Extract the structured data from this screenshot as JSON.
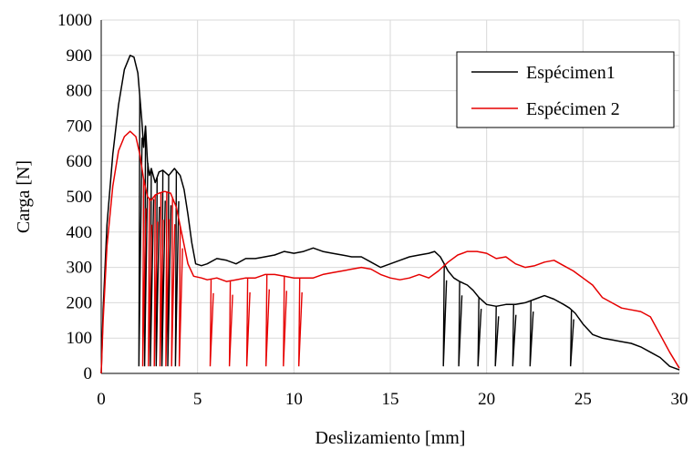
{
  "chart_data": {
    "type": "line",
    "title": "",
    "xlabel": "Deslizamiento  [mm]",
    "ylabel": "Carga [N]",
    "xlim": [
      0,
      30
    ],
    "ylim": [
      0,
      1000
    ],
    "xticks": [
      "0",
      "5",
      "10",
      "15",
      "20",
      "25",
      "30"
    ],
    "yticks": [
      "0",
      "100",
      "200",
      "300",
      "400",
      "500",
      "600",
      "700",
      "800",
      "900",
      "1000"
    ],
    "grid": true,
    "legend_position": "top-right",
    "series": [
      {
        "name": "Espécimen1",
        "color": "#000000",
        "points": [
          [
            0,
            0
          ],
          [
            0.1,
            180
          ],
          [
            0.3,
            420
          ],
          [
            0.6,
            620
          ],
          [
            0.9,
            760
          ],
          [
            1.2,
            860
          ],
          [
            1.5,
            900
          ],
          [
            1.7,
            895
          ],
          [
            1.9,
            850
          ],
          [
            2.1,
            720
          ],
          [
            2.2,
            640
          ],
          [
            2.3,
            700
          ],
          [
            2.4,
            600
          ],
          [
            2.5,
            560
          ],
          [
            2.6,
            580
          ],
          [
            2.8,
            540
          ],
          [
            3.0,
            570
          ],
          [
            3.2,
            575
          ],
          [
            3.5,
            560
          ],
          [
            3.8,
            580
          ],
          [
            4.1,
            560
          ],
          [
            4.3,
            520
          ],
          [
            4.5,
            450
          ],
          [
            4.7,
            370
          ],
          [
            4.9,
            310
          ],
          [
            5.2,
            305
          ],
          [
            5.5,
            310
          ],
          [
            6.0,
            325
          ],
          [
            6.5,
            320
          ],
          [
            7.0,
            310
          ],
          [
            7.5,
            325
          ],
          [
            8.0,
            325
          ],
          [
            8.5,
            330
          ],
          [
            9.0,
            335
          ],
          [
            9.5,
            345
          ],
          [
            10.0,
            340
          ],
          [
            10.5,
            345
          ],
          [
            11.0,
            355
          ],
          [
            11.5,
            345
          ],
          [
            12.0,
            340
          ],
          [
            12.5,
            335
          ],
          [
            13.0,
            330
          ],
          [
            13.5,
            330
          ],
          [
            14.0,
            315
          ],
          [
            14.5,
            300
          ],
          [
            15.0,
            310
          ],
          [
            15.5,
            320
          ],
          [
            16.0,
            330
          ],
          [
            16.5,
            335
          ],
          [
            17.0,
            340
          ],
          [
            17.3,
            345
          ],
          [
            17.6,
            330
          ],
          [
            17.8,
            310
          ],
          [
            18.0,
            290
          ],
          [
            18.3,
            270
          ],
          [
            18.6,
            260
          ],
          [
            19.0,
            250
          ],
          [
            19.3,
            235
          ],
          [
            19.6,
            215
          ],
          [
            20.0,
            195
          ],
          [
            20.5,
            190
          ],
          [
            21.0,
            195
          ],
          [
            21.5,
            195
          ],
          [
            22.0,
            200
          ],
          [
            22.5,
            210
          ],
          [
            23.0,
            220
          ],
          [
            23.5,
            210
          ],
          [
            24.0,
            195
          ],
          [
            24.3,
            185
          ],
          [
            24.6,
            170
          ],
          [
            25.0,
            140
          ],
          [
            25.5,
            110
          ],
          [
            26.0,
            100
          ],
          [
            26.5,
            95
          ],
          [
            27.0,
            90
          ],
          [
            27.5,
            85
          ],
          [
            28.0,
            75
          ],
          [
            28.5,
            60
          ],
          [
            29.0,
            45
          ],
          [
            29.5,
            20
          ],
          [
            30.0,
            10
          ]
        ],
        "unloading_x": [
          2.0,
          2.3,
          2.6,
          2.9,
          3.2,
          3.5,
          3.9,
          17.8,
          18.6,
          19.6,
          20.5,
          21.4,
          22.3,
          24.4
        ]
      },
      {
        "name": "Espécimen 2",
        "color": "#e60000",
        "points": [
          [
            0,
            0
          ],
          [
            0.1,
            150
          ],
          [
            0.3,
            360
          ],
          [
            0.6,
            530
          ],
          [
            0.9,
            630
          ],
          [
            1.2,
            670
          ],
          [
            1.5,
            685
          ],
          [
            1.8,
            670
          ],
          [
            2.0,
            620
          ],
          [
            2.2,
            550
          ],
          [
            2.4,
            500
          ],
          [
            2.6,
            490
          ],
          [
            2.8,
            505
          ],
          [
            3.0,
            510
          ],
          [
            3.3,
            515
          ],
          [
            3.6,
            510
          ],
          [
            3.9,
            470
          ],
          [
            4.2,
            390
          ],
          [
            4.5,
            310
          ],
          [
            4.8,
            275
          ],
          [
            5.2,
            270
          ],
          [
            5.5,
            265
          ],
          [
            6.0,
            270
          ],
          [
            6.5,
            260
          ],
          [
            7.0,
            265
          ],
          [
            7.5,
            270
          ],
          [
            8.0,
            270
          ],
          [
            8.5,
            280
          ],
          [
            9.0,
            280
          ],
          [
            9.5,
            275
          ],
          [
            10.0,
            270
          ],
          [
            10.5,
            270
          ],
          [
            11.0,
            270
          ],
          [
            11.5,
            280
          ],
          [
            12.0,
            285
          ],
          [
            12.5,
            290
          ],
          [
            13.0,
            295
          ],
          [
            13.5,
            300
          ],
          [
            14.0,
            295
          ],
          [
            14.5,
            280
          ],
          [
            15.0,
            270
          ],
          [
            15.5,
            265
          ],
          [
            16.0,
            270
          ],
          [
            16.5,
            280
          ],
          [
            17.0,
            270
          ],
          [
            17.5,
            290
          ],
          [
            18.0,
            315
          ],
          [
            18.5,
            335
          ],
          [
            19.0,
            345
          ],
          [
            19.5,
            345
          ],
          [
            20.0,
            340
          ],
          [
            20.5,
            325
          ],
          [
            21.0,
            330
          ],
          [
            21.5,
            310
          ],
          [
            22.0,
            300
          ],
          [
            22.5,
            305
          ],
          [
            23.0,
            315
          ],
          [
            23.5,
            320
          ],
          [
            24.0,
            305
          ],
          [
            24.5,
            290
          ],
          [
            25.0,
            270
          ],
          [
            25.5,
            250
          ],
          [
            26.0,
            215
          ],
          [
            26.5,
            200
          ],
          [
            27.0,
            185
          ],
          [
            27.5,
            180
          ],
          [
            28.0,
            175
          ],
          [
            28.5,
            160
          ],
          [
            29.0,
            110
          ],
          [
            29.5,
            60
          ],
          [
            30.0,
            15
          ]
        ],
        "unloading_x": [
          2.2,
          2.5,
          2.8,
          3.1,
          3.4,
          3.7,
          4.1,
          5.7,
          6.7,
          7.6,
          8.6,
          9.5,
          10.3
        ]
      }
    ]
  }
}
